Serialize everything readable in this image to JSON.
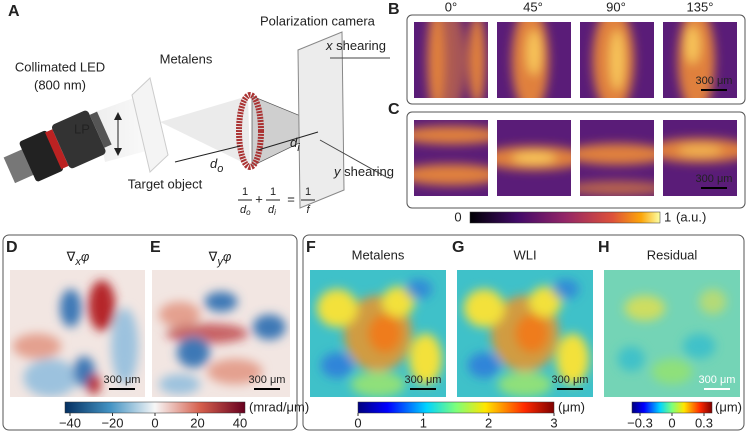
{
  "panel_labels": [
    "A",
    "B",
    "C",
    "D",
    "E",
    "F",
    "G",
    "H"
  ],
  "schematic": {
    "camera": "Polarization camera",
    "source": "Collimated LED",
    "wavelength": "(800 nm)",
    "lens": "Metalens",
    "polarizer": "LP",
    "x_shear": {
      "axis": "x",
      "text": "shearing"
    },
    "y_shear": {
      "axis": "y",
      "text": "shearing"
    },
    "d_o": {
      "main": "d",
      "sub": "o"
    },
    "d_i": {
      "main": "d",
      "sub": "i"
    },
    "target": "Target object",
    "equation": {
      "num1": "1",
      "den1": {
        "main": "d",
        "sub": "o"
      },
      "plus": "+",
      "num2": "1",
      "den2": {
        "main": "d",
        "sub": "i"
      },
      "equals": "=",
      "num3": "1",
      "den3": "f"
    }
  },
  "intensity": {
    "angles": [
      "0°",
      "45°",
      "90°",
      "135°"
    ],
    "scale_bar": "300 μm",
    "colorbar": {
      "min": "0",
      "max": "1",
      "unit": "(a.u.)"
    }
  },
  "gradients": {
    "x_title": {
      "main": "∇",
      "sub": "x",
      "tail": "φ"
    },
    "y_title": {
      "main": "∇",
      "sub": "y",
      "tail": "φ"
    },
    "scale_bar": "300 μm",
    "colorbar": {
      "ticks": [
        "−40",
        "−20",
        "0",
        "20",
        "40"
      ],
      "unit": "(mrad/μm)"
    }
  },
  "surface": {
    "titles": [
      "Metalens",
      "WLI",
      "Residual"
    ],
    "scale_bar": "300 μm",
    "colorbar": {
      "ticks": [
        "0",
        "1",
        "2",
        "3"
      ],
      "unit": "(μm)"
    },
    "residual_colorbar": {
      "ticks": [
        "−0.3",
        "0",
        "0.3"
      ],
      "unit": "(μm)"
    }
  }
}
